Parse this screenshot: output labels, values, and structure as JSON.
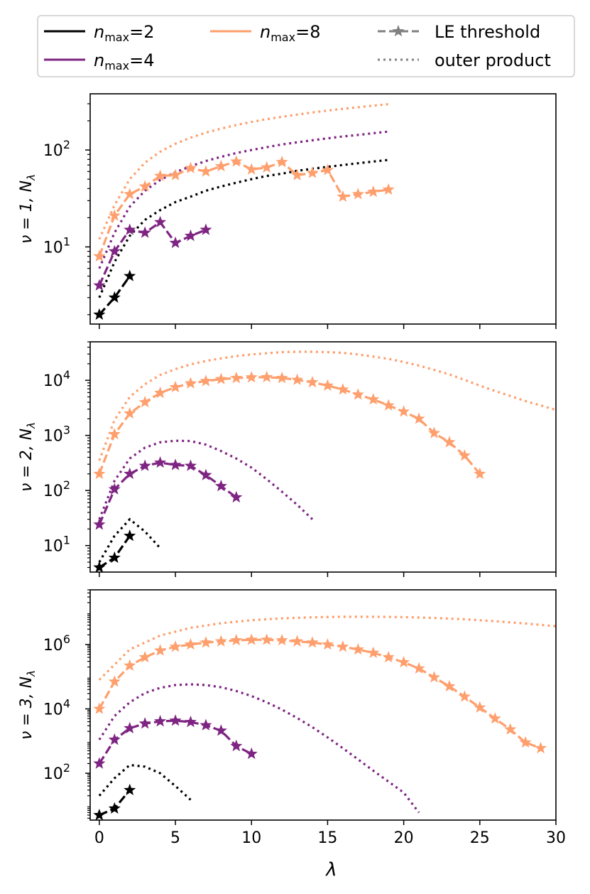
{
  "legend": {
    "items": [
      {
        "label_main": "n",
        "label_sub": "max",
        "label_rest": "=2",
        "color": "#000000",
        "style": "solid"
      },
      {
        "label_main": "n",
        "label_sub": "max",
        "label_rest": "=4",
        "color": "#7e2482",
        "style": "solid"
      },
      {
        "label_main": "n",
        "label_sub": "max",
        "label_rest": "=8",
        "color": "#fe9f6d",
        "style": "solid"
      },
      {
        "label": "LE threshold",
        "color": "#808080",
        "style": "dashed-star"
      },
      {
        "label": "outer product",
        "color": "#808080",
        "style": "dotted"
      }
    ]
  },
  "x_label": "λ",
  "x_ticks": [
    "0",
    "5",
    "10",
    "15",
    "20",
    "25",
    "30"
  ],
  "chart_data": [
    {
      "type": "line",
      "ylabel": "ν = 1, N_λ",
      "ylabel_parts": {
        "prefix": "ν = 1, ",
        "N": "N",
        "sub": "λ"
      },
      "yscale": "log",
      "xlim": [
        -0.6,
        30
      ],
      "ylim": [
        1.6,
        380
      ],
      "y_ticks": [
        {
          "base": "10",
          "exp": "1",
          "value": 10
        },
        {
          "base": "10",
          "exp": "2",
          "value": 100
        }
      ],
      "series": [
        {
          "name": "n_max=2",
          "color": "#000000",
          "kind": "LE threshold",
          "x": [
            0,
            1,
            2
          ],
          "y": [
            2,
            3,
            5
          ]
        },
        {
          "name": "n_max=4",
          "color": "#7e2482",
          "kind": "LE threshold",
          "x": [
            0,
            1,
            2,
            3,
            4,
            5,
            6,
            7
          ],
          "y": [
            4,
            9,
            15,
            14,
            18,
            11,
            13,
            15
          ]
        },
        {
          "name": "n_max=8",
          "color": "#fe9f6d",
          "kind": "LE threshold",
          "x": [
            0,
            1,
            2,
            3,
            4,
            5,
            6,
            7,
            8,
            9,
            10,
            11,
            12,
            13,
            14,
            15,
            16,
            17,
            18,
            19
          ],
          "y": [
            8,
            21,
            35,
            42,
            54,
            55,
            65,
            60,
            68,
            76,
            63,
            66,
            75,
            55,
            58,
            62,
            33,
            35,
            37,
            39
          ]
        },
        {
          "name": "n_max=2",
          "color": "#000000",
          "kind": "outer product",
          "x": [
            0,
            1,
            2,
            3,
            4,
            5,
            6,
            7,
            8,
            9,
            10,
            11,
            12,
            13,
            14,
            15,
            16,
            17,
            18,
            19
          ],
          "y": [
            3,
            7,
            13,
            19,
            24,
            29,
            33,
            38,
            42,
            46,
            50,
            54,
            57,
            61,
            64,
            67,
            70,
            73,
            76,
            79
          ]
        },
        {
          "name": "n_max=4",
          "color": "#7e2482",
          "kind": "outer product",
          "x": [
            0,
            1,
            2,
            3,
            4,
            5,
            6,
            7,
            8,
            9,
            10,
            11,
            12,
            13,
            14,
            15,
            16,
            17,
            18,
            19
          ],
          "y": [
            6,
            14,
            26,
            38,
            49,
            59,
            68,
            77,
            85,
            93,
            100,
            107,
            114,
            120,
            126,
            132,
            138,
            143,
            149,
            155
          ]
        },
        {
          "name": "n_max=8",
          "color": "#fe9f6d",
          "kind": "outer product",
          "x": [
            0,
            1,
            2,
            3,
            4,
            5,
            6,
            7,
            8,
            9,
            10,
            11,
            12,
            13,
            14,
            15,
            16,
            17,
            18,
            19
          ],
          "y": [
            12,
            27,
            50,
            74,
            96,
            116,
            134,
            151,
            166,
            181,
            195,
            208,
            220,
            232,
            244,
            255,
            266,
            276,
            287,
            297
          ]
        }
      ]
    },
    {
      "type": "line",
      "ylabel": "ν = 2, N_λ",
      "ylabel_parts": {
        "prefix": "ν = 2, ",
        "N": "N",
        "sub": "λ"
      },
      "yscale": "log",
      "xlim": [
        -0.6,
        30
      ],
      "ylim": [
        3.3,
        50000
      ],
      "y_ticks": [
        {
          "base": "10",
          "exp": "1",
          "value": 10
        },
        {
          "base": "10",
          "exp": "2",
          "value": 100
        },
        {
          "base": "10",
          "exp": "3",
          "value": 1000
        },
        {
          "base": "10",
          "exp": "4",
          "value": 10000
        }
      ],
      "series": [
        {
          "name": "n_max=2",
          "color": "#000000",
          "kind": "LE threshold",
          "x": [
            0,
            1,
            2
          ],
          "y": [
            4,
            6,
            15
          ]
        },
        {
          "name": "n_max=4",
          "color": "#7e2482",
          "kind": "LE threshold",
          "x": [
            0,
            1,
            2,
            3,
            4,
            5,
            6,
            7,
            8,
            9
          ],
          "y": [
            24,
            105,
            200,
            280,
            320,
            290,
            280,
            190,
            120,
            75
          ]
        },
        {
          "name": "n_max=8",
          "color": "#fe9f6d",
          "kind": "LE threshold",
          "x": [
            0,
            1,
            2,
            3,
            4,
            5,
            6,
            7,
            8,
            9,
            10,
            11,
            12,
            13,
            14,
            15,
            16,
            17,
            18,
            19,
            20,
            21,
            22,
            23,
            24,
            25
          ],
          "y": [
            200,
            1050,
            2500,
            4000,
            5900,
            7500,
            8800,
            9700,
            10500,
            11000,
            11300,
            11400,
            11000,
            10200,
            9200,
            8000,
            6800,
            5500,
            4500,
            3500,
            2700,
            2000,
            1100,
            750,
            430,
            200
          ]
        },
        {
          "name": "n_max=2",
          "color": "#000000",
          "kind": "outer product",
          "x": [
            0,
            1,
            2,
            3,
            4
          ],
          "y": [
            5,
            15,
            30,
            18,
            9
          ]
        },
        {
          "name": "n_max=4",
          "color": "#7e2482",
          "kind": "outer product",
          "x": [
            0,
            1,
            2,
            3,
            4,
            5,
            6,
            7,
            8,
            9,
            10,
            11,
            12,
            13,
            14
          ],
          "y": [
            30,
            150,
            380,
            600,
            750,
            800,
            790,
            680,
            520,
            380,
            260,
            160,
            95,
            55,
            30
          ]
        },
        {
          "name": "n_max=8",
          "color": "#fe9f6d",
          "kind": "outer product",
          "x": [
            0,
            1,
            2,
            3,
            4,
            5,
            6,
            7,
            8,
            9,
            10,
            11,
            12,
            13,
            14,
            15,
            16,
            17,
            18,
            19,
            20,
            21,
            22,
            23,
            24,
            25,
            26,
            27,
            28,
            29,
            30
          ],
          "y": [
            350,
            1900,
            5000,
            8500,
            12500,
            16000,
            19500,
            22500,
            25000,
            27500,
            29500,
            31000,
            32500,
            33000,
            33000,
            32500,
            31500,
            29500,
            27000,
            24500,
            21500,
            18500,
            15500,
            12800,
            10200,
            8000,
            6400,
            5200,
            4200,
            3500,
            2900
          ]
        }
      ]
    },
    {
      "type": "line",
      "ylabel": "ν = 3, N_λ",
      "ylabel_parts": {
        "prefix": "ν = 3, ",
        "N": "N",
        "sub": "λ"
      },
      "yscale": "log",
      "xlim": [
        -0.6,
        30
      ],
      "ylim": [
        3.5,
        50000000
      ],
      "y_ticks": [
        {
          "base": "10",
          "exp": "2",
          "value": 100
        },
        {
          "base": "10",
          "exp": "4",
          "value": 10000
        },
        {
          "base": "10",
          "exp": "6",
          "value": 1000000
        }
      ],
      "series": [
        {
          "name": "n_max=2",
          "color": "#000000",
          "kind": "LE threshold",
          "x": [
            0,
            1,
            2
          ],
          "y": [
            5,
            8,
            30
          ]
        },
        {
          "name": "n_max=4",
          "color": "#7e2482",
          "kind": "LE threshold",
          "x": [
            0,
            1,
            2,
            3,
            4,
            5,
            6,
            7,
            8,
            9,
            10
          ],
          "y": [
            200,
            1100,
            2500,
            3500,
            4100,
            4300,
            3900,
            3100,
            2100,
            700,
            400
          ]
        },
        {
          "name": "n_max=8",
          "color": "#fe9f6d",
          "kind": "LE threshold",
          "x": [
            0,
            1,
            2,
            3,
            4,
            5,
            6,
            7,
            8,
            9,
            10,
            11,
            12,
            13,
            14,
            15,
            16,
            17,
            18,
            19,
            20,
            21,
            22,
            23,
            24,
            25,
            26,
            27,
            28,
            29
          ],
          "y": [
            10000,
            70000,
            220000,
            400000,
            650000,
            850000,
            1000000,
            1150000,
            1250000,
            1350000,
            1400000,
            1400000,
            1350000,
            1250000,
            1150000,
            1000000,
            850000,
            700000,
            550000,
            400000,
            280000,
            180000,
            95000,
            50000,
            24000,
            11000,
            5000,
            2300,
            900,
            600
          ]
        },
        {
          "name": "n_max=2",
          "color": "#000000",
          "kind": "outer product",
          "x": [
            0,
            1,
            2,
            3,
            4,
            5,
            6
          ],
          "y": [
            20,
            70,
            180,
            160,
            100,
            40,
            15
          ]
        },
        {
          "name": "n_max=4",
          "color": "#7e2482",
          "kind": "outer product",
          "x": [
            0,
            1,
            2,
            3,
            4,
            5,
            6,
            7,
            8,
            9,
            10,
            11,
            12,
            13,
            14,
            15,
            16,
            17,
            18,
            19,
            20,
            21
          ],
          "y": [
            1100,
            6000,
            16000,
            31000,
            45000,
            55000,
            58000,
            55000,
            47000,
            36000,
            25000,
            16000,
            9500,
            5200,
            2700,
            1300,
            600,
            270,
            120,
            55,
            25,
            6
          ]
        },
        {
          "name": "n_max=8",
          "color": "#fe9f6d",
          "kind": "outer product",
          "x": [
            0,
            2,
            4,
            6,
            8,
            10,
            12,
            14,
            16,
            18,
            20,
            22,
            24,
            26,
            28,
            30
          ],
          "y": [
            80000,
            700000,
            1900000,
            3300000,
            4600000,
            5700000,
            6500000,
            7000000,
            7300000,
            7300000,
            7100000,
            6700000,
            6100000,
            5300000,
            4500000,
            3700000
          ]
        }
      ]
    }
  ]
}
